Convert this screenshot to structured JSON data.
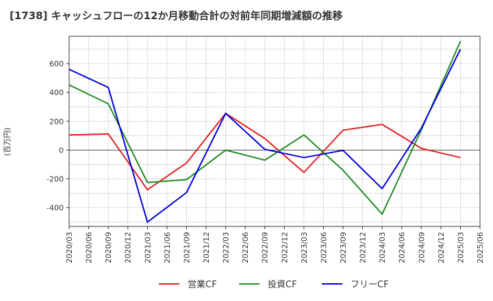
{
  "chart_data": {
    "type": "line",
    "title": "[1738]  キャッシュフローの12か月移動合計の対前年同期増減額の推移",
    "ylabel": "(百万円)",
    "xlabel": "",
    "x": [
      "2020/03",
      "2020/06",
      "2020/09",
      "2020/12",
      "2021/03",
      "2021/06",
      "2021/09",
      "2021/12",
      "2022/03",
      "2022/06",
      "2022/09",
      "2022/12",
      "2023/03",
      "2023/06",
      "2023/09",
      "2023/12",
      "2024/03",
      "2024/06",
      "2024/09",
      "2024/12",
      "2025/03",
      "2025/06"
    ],
    "yticks": [
      600,
      400,
      200,
      0,
      -200,
      -400
    ],
    "ylim": [
      -530,
      790
    ],
    "grid": true,
    "legend_position": "bottom",
    "series": [
      {
        "name": "営業CF",
        "color": "#e02020",
        "points": [
          [
            "2020/03",
            105
          ],
          [
            "2020/09",
            112
          ],
          [
            "2021/03",
            -275
          ],
          [
            "2021/09",
            -90
          ],
          [
            "2022/03",
            255
          ],
          [
            "2022/09",
            80
          ],
          [
            "2023/03",
            -155
          ],
          [
            "2023/09",
            138
          ],
          [
            "2024/03",
            178
          ],
          [
            "2024/09",
            12
          ],
          [
            "2025/03",
            -52
          ]
        ]
      },
      {
        "name": "投資CF",
        "color": "#228b22",
        "points": [
          [
            "2020/03",
            452
          ],
          [
            "2020/09",
            322
          ],
          [
            "2021/03",
            -225
          ],
          [
            "2021/09",
            -205
          ],
          [
            "2022/03",
            0
          ],
          [
            "2022/09",
            -70
          ],
          [
            "2023/03",
            105
          ],
          [
            "2023/09",
            -140
          ],
          [
            "2024/03",
            -445
          ],
          [
            "2024/09",
            140
          ],
          [
            "2025/03",
            755
          ]
        ]
      },
      {
        "name": "フリーCF",
        "color": "#0000dd",
        "points": [
          [
            "2020/03",
            560
          ],
          [
            "2020/09",
            435
          ],
          [
            "2021/03",
            -500
          ],
          [
            "2021/09",
            -295
          ],
          [
            "2022/03",
            255
          ],
          [
            "2022/09",
            5
          ],
          [
            "2023/03",
            -52
          ],
          [
            "2023/09",
            -2
          ],
          [
            "2024/03",
            -268
          ],
          [
            "2024/09",
            152
          ],
          [
            "2025/03",
            700
          ]
        ]
      }
    ]
  }
}
